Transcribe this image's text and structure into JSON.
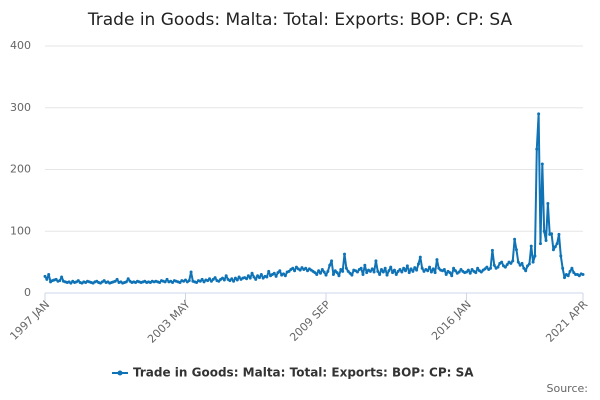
{
  "chart_data": {
    "type": "line",
    "title": "Trade in Goods: Malta: Total: Exports: BOP: CP: SA",
    "source_label": "Source:",
    "categories": [
      "1997 JAN",
      null,
      null,
      null,
      null,
      null,
      null,
      null,
      null,
      null,
      null,
      null,
      null,
      null,
      null,
      null,
      null,
      null,
      null,
      null,
      null,
      null,
      null,
      null,
      null,
      null,
      null,
      null,
      null,
      null,
      null,
      null,
      null,
      null,
      null,
      null,
      null,
      null,
      null,
      null,
      null,
      null,
      null,
      null,
      null,
      null,
      null,
      null,
      null,
      null,
      null,
      null,
      null,
      null,
      null,
      null,
      null,
      null,
      null,
      null,
      null,
      null,
      null,
      null,
      null,
      null,
      null,
      null,
      null,
      null,
      null,
      null,
      null,
      null,
      null,
      null,
      "2003 MAY",
      null,
      null,
      null,
      null,
      null,
      null,
      null,
      null,
      null,
      null,
      null,
      null,
      null,
      null,
      null,
      null,
      null,
      null,
      null,
      null,
      null,
      null,
      null,
      null,
      null,
      null,
      null,
      null,
      null,
      null,
      null,
      null,
      null,
      null,
      null,
      null,
      null,
      null,
      null,
      null,
      null,
      null,
      null,
      null,
      null,
      null,
      null,
      null,
      null,
      null,
      null,
      null,
      null,
      null,
      null,
      null,
      null,
      null,
      null,
      null,
      null,
      null,
      null,
      null,
      null,
      null,
      null,
      null,
      null,
      null,
      null,
      null,
      null,
      null,
      null,
      "2009 SEP",
      null,
      null,
      null,
      null,
      null,
      null,
      null,
      null,
      null,
      null,
      null,
      null,
      null,
      null,
      null,
      null,
      null,
      null,
      null,
      null,
      null,
      null,
      null,
      null,
      null,
      null,
      null,
      null,
      null,
      null,
      null,
      null,
      null,
      null,
      null,
      null,
      null,
      null,
      null,
      null,
      null,
      null,
      null,
      null,
      null,
      null,
      null,
      null,
      null,
      null,
      null,
      null,
      null,
      null,
      null,
      null,
      null,
      null,
      null,
      null,
      null,
      null,
      null,
      null,
      null,
      null,
      null,
      null,
      null,
      null,
      null,
      null,
      null,
      null,
      null,
      "2016 JAN",
      null,
      null,
      null,
      null,
      null,
      null,
      null,
      null,
      null,
      null,
      null,
      null,
      null,
      null,
      null,
      null,
      null,
      null,
      null,
      null,
      null,
      null,
      null,
      null,
      null,
      null,
      null,
      null,
      null,
      null,
      null,
      null,
      null,
      null,
      null,
      null,
      null,
      null,
      null,
      null,
      null,
      null,
      null,
      null,
      null,
      null,
      null,
      null,
      null,
      null,
      null,
      null,
      null,
      null,
      null,
      null,
      null,
      null,
      null,
      null,
      null,
      null,
      "2021 APR"
    ],
    "series": [
      {
        "name": "Trade in Goods: Malta: Total: Exports: BOP: CP: SA",
        "color": "#0f73b6",
        "values": [
          27,
          22,
          30,
          18,
          20,
          21,
          22,
          19,
          20,
          26,
          19,
          18,
          17,
          18,
          16,
          19,
          17,
          18,
          20,
          17,
          16,
          18,
          17,
          19,
          18,
          17,
          16,
          18,
          19,
          17,
          16,
          18,
          20,
          17,
          18,
          16,
          17,
          18,
          19,
          22,
          17,
          18,
          16,
          17,
          18,
          23,
          19,
          17,
          18,
          17,
          19,
          18,
          17,
          18,
          19,
          17,
          18,
          17,
          19,
          18,
          19,
          18,
          17,
          20,
          19,
          18,
          22,
          18,
          19,
          17,
          20,
          19,
          18,
          17,
          20,
          19,
          21,
          18,
          20,
          34,
          19,
          18,
          17,
          20,
          19,
          22,
          18,
          21,
          20,
          23,
          19,
          22,
          25,
          20,
          19,
          22,
          24,
          21,
          28,
          22,
          20,
          23,
          19,
          24,
          21,
          26,
          22,
          24,
          25,
          23,
          28,
          24,
          32,
          26,
          22,
          28,
          25,
          30,
          24,
          27,
          26,
          35,
          28,
          30,
          32,
          27,
          33,
          36,
          29,
          31,
          28,
          34,
          35,
          38,
          40,
          36,
          42,
          39,
          37,
          41,
          38,
          40,
          36,
          39,
          37,
          35,
          33,
          30,
          36,
          32,
          38,
          34,
          29,
          35,
          45,
          52,
          30,
          36,
          33,
          28,
          38,
          35,
          63,
          40,
          35,
          32,
          29,
          37,
          36,
          34,
          38,
          40,
          30,
          45,
          33,
          37,
          35,
          39,
          34,
          52,
          35,
          30,
          38,
          34,
          40,
          29,
          36,
          42,
          33,
          37,
          30,
          35,
          38,
          34,
          40,
          36,
          44,
          33,
          39,
          35,
          41,
          37,
          47,
          58,
          40,
          35,
          38,
          36,
          42,
          34,
          39,
          33,
          54,
          40,
          37,
          36,
          38,
          30,
          35,
          33,
          28,
          40,
          36,
          32,
          34,
          38,
          35,
          33,
          34,
          37,
          32,
          38,
          35,
          33,
          40,
          36,
          34,
          37,
          39,
          42,
          38,
          40,
          69,
          45,
          40,
          42,
          48,
          50,
          44,
          42,
          46,
          50,
          48,
          52,
          87,
          70,
          50,
          45,
          48,
          40,
          36,
          44,
          47,
          76,
          50,
          60,
          233,
          290,
          80,
          209,
          100,
          85,
          145,
          95,
          96,
          70,
          75,
          80,
          95,
          60,
          40,
          25,
          30,
          28,
          35,
          40,
          33,
          30,
          30,
          28,
          31,
          30
        ]
      }
    ],
    "ylim": [
      0,
      400
    ],
    "yticks": [
      0,
      100,
      200,
      300,
      400
    ],
    "grid": true
  }
}
